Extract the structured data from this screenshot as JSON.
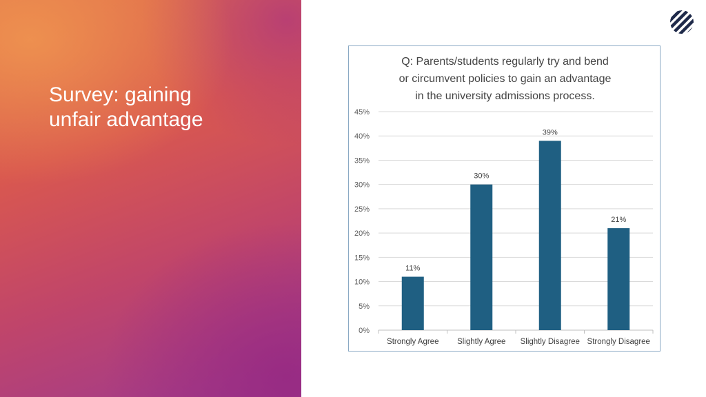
{
  "slide": {
    "title": "Survey: gaining\nunfair advantage"
  },
  "logo": {
    "icon": "striped-circle-logo-icon",
    "color": "#1f2a4a"
  },
  "colors": {
    "bar": "#1f5f82",
    "grid": "#d9d9d9",
    "axis": "#bfbfbf"
  },
  "chart_data": {
    "type": "bar",
    "title": "Q: Parents/students regularly try and bend\nor circumvent policies to gain an advantage\nin the university admissions process.",
    "categories": [
      "Strongly Agree",
      "Slightly Agree",
      "Slightly Disagree",
      "Strongly Disagree"
    ],
    "values": [
      11,
      30,
      39,
      21
    ],
    "data_labels": [
      "11%",
      "30%",
      "39%",
      "21%"
    ],
    "ylim": [
      0,
      45
    ],
    "yticks": [
      0,
      5,
      10,
      15,
      20,
      25,
      30,
      35,
      40,
      45
    ],
    "ytick_labels": [
      "0%",
      "5%",
      "10%",
      "15%",
      "20%",
      "25%",
      "30%",
      "35%",
      "40%",
      "45%"
    ],
    "grid": true,
    "xlabel": "",
    "ylabel": ""
  }
}
